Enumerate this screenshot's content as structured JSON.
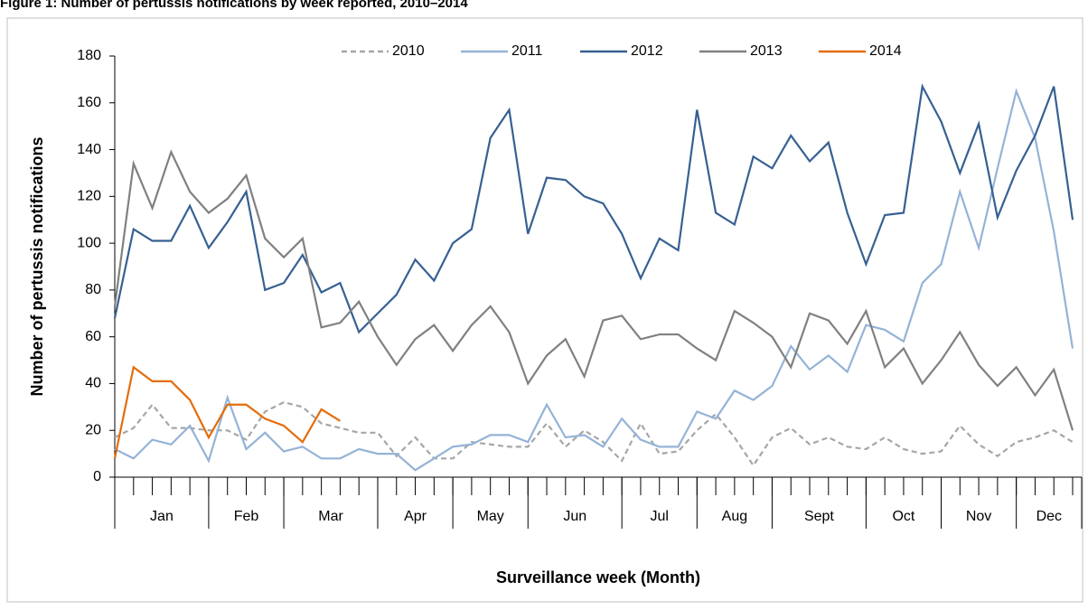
{
  "chart_data": {
    "type": "line",
    "title": "Figure 1: Number of pertussis notifications by week reported, 2010–2014",
    "x_label": "Surveillance week (Month)",
    "y_label": "Number of pertussis notifications",
    "categories": [
      "Jan",
      "Jan",
      "Jan",
      "Jan",
      "Jan",
      "Feb",
      "Feb",
      "Feb",
      "Feb",
      "Mar",
      "Mar",
      "Mar",
      "Mar",
      "Mar",
      "Apr",
      "Apr",
      "Apr",
      "Apr",
      "May",
      "May",
      "May",
      "May",
      "Jun",
      "Jun",
      "Jun",
      "Jun",
      "Jun",
      "Jul",
      "Jul",
      "Jul",
      "Jul",
      "Aug",
      "Aug",
      "Aug",
      "Aug",
      "Sept",
      "Sept",
      "Sept",
      "Sept",
      "Sept",
      "Oct",
      "Oct",
      "Oct",
      "Oct",
      "Nov",
      "Nov",
      "Nov",
      "Nov",
      "Dec",
      "Dec",
      "Dec",
      "Dec"
    ],
    "series": [
      {
        "name": "2010",
        "color": "#a6a6a6",
        "dashed": true,
        "values": [
          17,
          21,
          31,
          21,
          21,
          20,
          20,
          16,
          28,
          32,
          30,
          23,
          21,
          19,
          19,
          9,
          17,
          8,
          8,
          15,
          14,
          13,
          13,
          23,
          13,
          20,
          15,
          7,
          23,
          10,
          11,
          20,
          27,
          17,
          5,
          17,
          21,
          14,
          17,
          13,
          12,
          17,
          12,
          10,
          11,
          22,
          14,
          9,
          15,
          17,
          20,
          15
        ]
      },
      {
        "name": "2011",
        "color": "#95b3d7",
        "values": [
          12,
          8,
          16,
          14,
          22,
          7,
          34,
          12,
          19,
          11,
          13,
          8,
          8,
          12,
          10,
          10,
          3,
          8,
          13,
          14,
          18,
          18,
          15,
          31,
          17,
          18,
          13,
          25,
          16,
          13,
          13,
          28,
          25,
          37,
          33,
          39,
          56,
          46,
          52,
          45,
          65,
          63,
          58,
          83,
          91,
          122,
          98,
          132,
          165,
          145,
          105,
          55
        ]
      },
      {
        "name": "2012",
        "color": "#376092",
        "values": [
          68,
          106,
          101,
          101,
          116,
          98,
          109,
          122,
          80,
          83,
          95,
          79,
          83,
          62,
          70,
          78,
          93,
          84,
          100,
          106,
          145,
          157,
          104,
          128,
          127,
          120,
          117,
          104,
          85,
          102,
          97,
          157,
          113,
          108,
          137,
          132,
          146,
          135,
          143,
          113,
          91,
          112,
          113,
          167,
          152,
          130,
          151,
          111,
          131,
          146,
          167,
          110
        ]
      },
      {
        "name": "2013",
        "color": "#808080",
        "values": [
          73,
          134,
          115,
          139,
          122,
          113,
          119,
          129,
          102,
          94,
          102,
          64,
          66,
          75,
          60,
          48,
          59,
          65,
          54,
          65,
          73,
          62,
          40,
          52,
          59,
          43,
          67,
          69,
          59,
          61,
          61,
          55,
          50,
          71,
          66,
          60,
          47,
          70,
          67,
          57,
          71,
          47,
          55,
          40,
          50,
          62,
          48,
          39,
          47,
          35,
          46,
          20
        ]
      },
      {
        "name": "2014",
        "color": "#e46c0a",
        "values": [
          8,
          47,
          41,
          41,
          33,
          17,
          31,
          31,
          25,
          22,
          15,
          29,
          24,
          null,
          null,
          null,
          null,
          null,
          null,
          null,
          null,
          null,
          null,
          null,
          null,
          null,
          null,
          null,
          null,
          null,
          null,
          null,
          null,
          null,
          null,
          null,
          null,
          null,
          null,
          null,
          null,
          null,
          null,
          null,
          null,
          null,
          null,
          null,
          null,
          null,
          null,
          null
        ]
      }
    ],
    "ylim": [
      0,
      180
    ],
    "yticks": [
      0,
      20,
      40,
      60,
      80,
      100,
      120,
      140,
      160,
      180
    ],
    "grid": false
  }
}
